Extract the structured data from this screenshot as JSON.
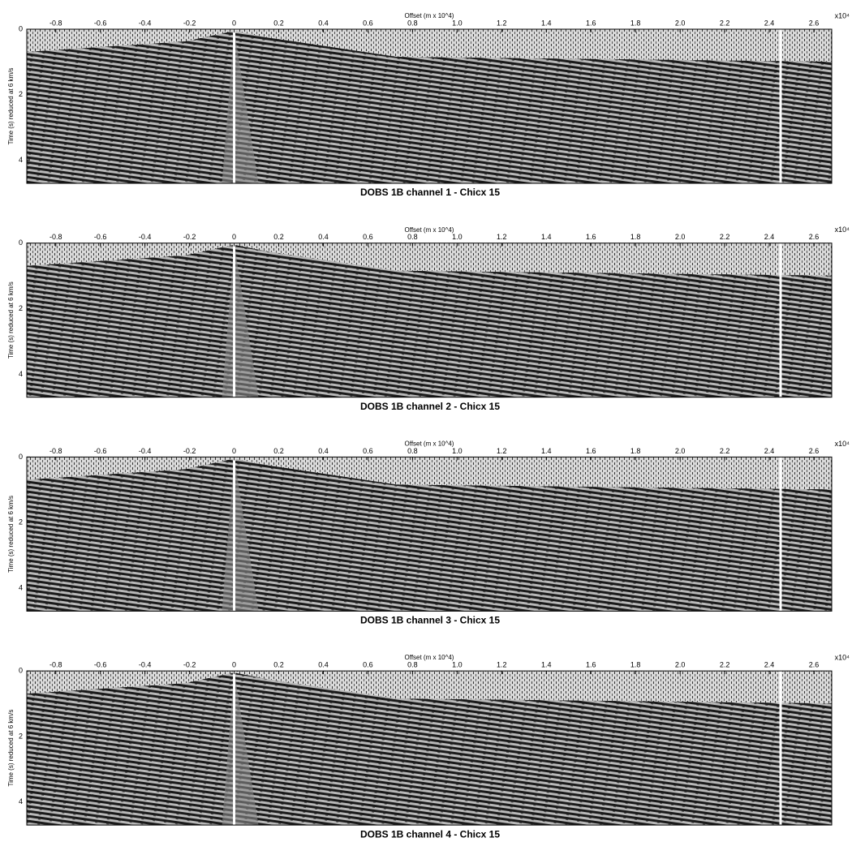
{
  "chart_data": [
    {
      "type": "seismic",
      "title": "DOBS 1B channel 1 - Chicx 15",
      "x_label": "Offset (m x 10^4)",
      "x_exponent": "x10⁴",
      "y_label": "Time (s) reduced at 6 km/s",
      "xlim": [
        -0.93,
        2.68
      ],
      "xticks": [
        -0.8,
        -0.6,
        -0.4,
        -0.2,
        0,
        0.2,
        0.4,
        0.6,
        0.8,
        {
          "value": 1.0,
          "label": "1.0"
        },
        1.2,
        1.4,
        1.6,
        1.8,
        {
          "value": 2.0,
          "label": "2.0"
        },
        2.2,
        2.4,
        2.6
      ],
      "ylim": [
        0,
        4.7
      ],
      "yticks": [
        0,
        2,
        4
      ],
      "y_inverted": true
    },
    {
      "type": "seismic",
      "title": "DOBS 1B channel 2 - Chicx 15",
      "x_label": "Offset (m x 10^4)",
      "x_exponent": "x10⁴",
      "y_label": "Time (s) reduced at 6 km/s",
      "xlim": [
        -0.93,
        2.68
      ],
      "xticks": [
        -0.8,
        -0.6,
        -0.4,
        -0.2,
        0,
        0.2,
        0.4,
        0.6,
        0.8,
        {
          "value": 1.0,
          "label": "1.0"
        },
        1.2,
        1.4,
        1.6,
        1.8,
        {
          "value": 2.0,
          "label": "2.0"
        },
        2.2,
        2.4,
        2.6
      ],
      "ylim": [
        0,
        4.7
      ],
      "yticks": [
        0,
        2,
        4
      ],
      "y_inverted": true
    },
    {
      "type": "seismic",
      "title": "DOBS 1B channel 3 - Chicx 15",
      "x_label": "Offset (m x 10^4)",
      "x_exponent": "x10⁴",
      "y_label": "Time (s) reduced at 6 km/s",
      "xlim": [
        -0.93,
        2.68
      ],
      "xticks": [
        -0.8,
        -0.6,
        -0.4,
        -0.2,
        0,
        0.2,
        0.4,
        0.6,
        0.8,
        {
          "value": 1.0,
          "label": "1.0"
        },
        1.2,
        1.4,
        1.6,
        1.8,
        {
          "value": 2.0,
          "label": "2.0"
        },
        2.2,
        2.4,
        2.6
      ],
      "ylim": [
        0,
        4.7
      ],
      "yticks": [
        0,
        2,
        4
      ],
      "y_inverted": true
    },
    {
      "type": "seismic",
      "title": "DOBS 1B channel 4 - Chicx 15",
      "x_label": "Offset (m x 10^4)",
      "x_exponent": "x10⁴",
      "y_label": "Time (s) reduced at 6 km/s",
      "xlim": [
        -0.93,
        2.68
      ],
      "xticks": [
        -0.8,
        -0.6,
        -0.4,
        -0.2,
        0,
        0.2,
        0.4,
        0.6,
        0.8,
        {
          "value": 1.0,
          "label": "1.0"
        },
        1.2,
        1.4,
        1.6,
        1.8,
        {
          "value": 2.0,
          "label": "2.0"
        },
        2.2,
        2.4,
        2.6
      ],
      "ylim": [
        0,
        4.7
      ],
      "yticks": [
        0,
        2,
        4
      ],
      "y_inverted": true
    }
  ]
}
